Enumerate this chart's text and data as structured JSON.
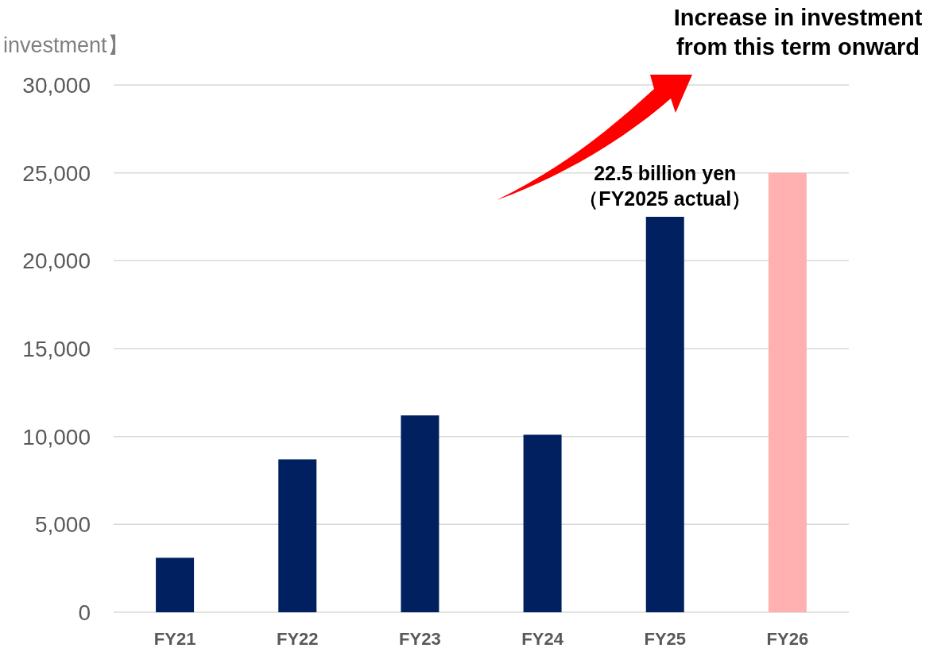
{
  "chart_data": {
    "type": "bar",
    "ylabel": "investment】",
    "categories": [
      "FY21",
      "FY22",
      "FY23",
      "FY24",
      "FY25",
      "FY26"
    ],
    "values": [
      3100,
      8700,
      11200,
      10100,
      22500,
      25000
    ],
    "colors": [
      "#002060",
      "#002060",
      "#002060",
      "#002060",
      "#002060",
      "#ffb0b0"
    ],
    "ylim": [
      0,
      30000
    ],
    "yticks": [
      0,
      {
        "value": 5000,
        "label": "5,000"
      },
      {
        "value": 10000,
        "label": "10,000"
      },
      {
        "value": 15000,
        "label": "15,000"
      },
      {
        "value": 20000,
        "label": "20,000"
      },
      {
        "value": 25000,
        "label": "25,000"
      },
      {
        "value": 30000,
        "label": "30,000"
      }
    ],
    "grid": "y",
    "annotations": [
      {
        "text": "22.5 billion yen\n（FY2025 actual）",
        "x": "FY25",
        "y": 22500
      },
      "Increase in investment\nfrom this term onward"
    ]
  }
}
